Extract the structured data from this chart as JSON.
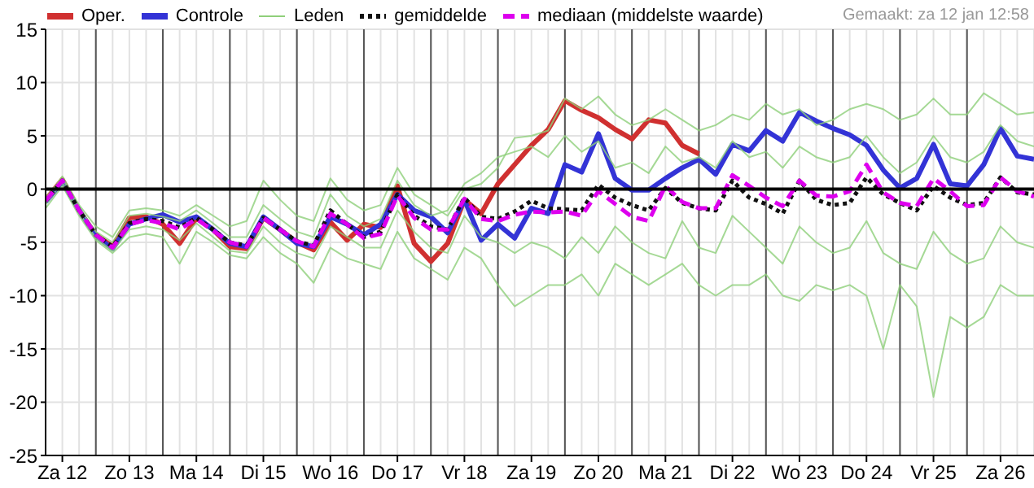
{
  "chart_data": {
    "type": "line",
    "annotations": [
      "Gemaakt: za 12 jan 12:58"
    ],
    "categories": [
      null,
      "Za 12",
      null,
      null,
      null,
      "Zo 13",
      null,
      null,
      null,
      "Ma 14",
      null,
      null,
      null,
      "Di 15",
      null,
      null,
      null,
      "Wo 16",
      null,
      null,
      null,
      "Do 17",
      null,
      null,
      null,
      "Vr 18",
      null,
      null,
      null,
      "Za 19",
      null,
      null,
      null,
      "Zo 20",
      null,
      null,
      null,
      "Ma 21",
      null,
      null,
      null,
      "Di 22",
      null,
      null,
      null,
      "Wo 23",
      null,
      null,
      null,
      "Do 24",
      null,
      null,
      null,
      "Vr 25",
      null,
      null,
      null,
      "Za 26",
      null,
      null
    ],
    "series": [
      {
        "name": "Oper.",
        "color": "#d03030",
        "values": [
          -1.0,
          0.9,
          -2.0,
          -4.3,
          -5.4,
          -2.7,
          -2.6,
          -3.3,
          -5.1,
          -2.7,
          -3.8,
          -5.4,
          -5.6,
          -2.7,
          -3.8,
          -5.0,
          -5.7,
          -3.1,
          -4.8,
          -3.3,
          -3.6,
          0.3,
          -5.1,
          -6.8,
          -5.1,
          -1.0,
          -2.3,
          0.5,
          2.3,
          4.1,
          5.6,
          8.3,
          7.4,
          6.7,
          5.6,
          4.7,
          6.5,
          6.2,
          4.1,
          3.3,
          null,
          null,
          null,
          null,
          null,
          null,
          null,
          null,
          null,
          null,
          null,
          null,
          null,
          null,
          null,
          null,
          null,
          null,
          null,
          null
        ]
      },
      {
        "name": "Controle",
        "color": "#3333d6",
        "values": [
          -1.2,
          0.7,
          -2,
          -4.4,
          -5.6,
          -3.3,
          -2.8,
          -2.4,
          -3.1,
          -2.6,
          -3.8,
          -5.1,
          -5.4,
          -2.6,
          -3.8,
          -5.1,
          -5.4,
          -2.6,
          -3.3,
          -4.3,
          -3.3,
          -0.5,
          -2.0,
          -2.6,
          -4.1,
          -1.0,
          -4.8,
          -3.3,
          -4.6,
          -1.8,
          -2.3,
          2.3,
          1.6,
          5.2,
          1.0,
          -0.1,
          -0.1,
          1.0,
          2.0,
          2.8,
          1.4,
          4.2,
          3.6,
          5.5,
          4.5,
          7.2,
          6.4,
          5.7,
          5.1,
          4.1,
          1.8,
          0.1,
          1.0,
          4.2,
          0.5,
          0.3,
          2.3,
          5.7,
          3.1,
          2.8
        ]
      },
      {
        "name": "Leden",
        "color": "#8fcf7a",
        "values": [
          -1,
          1.2,
          -1.5,
          -3.5,
          -4.5,
          -2,
          -1.8,
          -2,
          -2.5,
          -1.5,
          -2.5,
          -3.5,
          -3,
          0.8,
          -1,
          -2.5,
          -3,
          1,
          -1,
          -2,
          -1.5,
          2,
          -0.5,
          -1.5,
          -2.5,
          0,
          0.5,
          2,
          4.8,
          5,
          5.5,
          8.5,
          7.5,
          8.7,
          7,
          6,
          6.5,
          7.5,
          6.5,
          5.5,
          6,
          7,
          6.5,
          8,
          7,
          7.5,
          6,
          6.5,
          7.5,
          8,
          7.5,
          6.5,
          7,
          8.5,
          7,
          7,
          9,
          8,
          7,
          7.2
        ]
      },
      {
        "color": "#8fcf7a",
        "values": [
          -1.8,
          0.3,
          -2.5,
          -4.8,
          -6,
          -4.5,
          -4.2,
          -4.5,
          -7,
          -4,
          -5,
          -6.2,
          -6.5,
          -4.5,
          -6,
          -7,
          -8.8,
          -5.5,
          -6.5,
          -7,
          -7.5,
          -4,
          -6.5,
          -7.5,
          -8.5,
          -5.5,
          -6.5,
          -9,
          -11,
          -10,
          -9,
          -9,
          -8,
          -10,
          -7,
          -8,
          -9,
          -8,
          -7,
          -9,
          -10,
          -9,
          -9,
          -8,
          -10,
          -10.5,
          -9,
          -9.5,
          -9,
          -10,
          -15,
          -9,
          -11,
          -19.5,
          -12,
          -13,
          -12,
          -9,
          -10,
          -10
        ]
      },
      {
        "color": "#8fcf7a",
        "values": [
          -0.8,
          1.0,
          -1.8,
          -4.0,
          -5.0,
          -2.5,
          -2.3,
          -2.6,
          -3.0,
          -2.0,
          -3.2,
          -4.5,
          -4.5,
          -1.5,
          -2.8,
          -4.0,
          -4.5,
          -0.5,
          -2.5,
          -3.5,
          -2.8,
          0.8,
          -1.5,
          -2.5,
          -2.0,
          0.5,
          1.5,
          3.0,
          3.5,
          4.0,
          3.0,
          5.0,
          3.5,
          4.5,
          2.0,
          2.5,
          1.5,
          4.0,
          2.5,
          3.0,
          2.0,
          4.5,
          3.0,
          3.5,
          2.0,
          4.0,
          3.0,
          2.5,
          3.0,
          5.0,
          3.0,
          1.5,
          2.5,
          5.0,
          3.0,
          2.5,
          3.5,
          6.0,
          4.5,
          4.0
        ]
      },
      {
        "color": "#8fcf7a",
        "values": [
          -1.4,
          0.6,
          -2.2,
          -4.6,
          -5.8,
          -3.8,
          -3.5,
          -3.8,
          -4.8,
          -3.2,
          -4.5,
          -5.8,
          -6.0,
          -3.5,
          -5.0,
          -6.0,
          -6.5,
          -3.5,
          -4.5,
          -5.5,
          -5.5,
          -2.0,
          -4.0,
          -5.5,
          -6.0,
          -2.5,
          -4.5,
          -5.0,
          -6.0,
          -5.0,
          -5.5,
          -6.5,
          -4.5,
          -6.0,
          -3.5,
          -5.0,
          -6.0,
          -6.5,
          -3.0,
          -5.5,
          -6.0,
          -2.5,
          -4.0,
          -5.5,
          -7.0,
          -3.5,
          -5.0,
          -6.0,
          -5.5,
          -3.0,
          -6.0,
          -7.0,
          -7.5,
          -4.0,
          -6.0,
          -7.0,
          -6.5,
          -3.5,
          -5.0,
          -5.5
        ]
      },
      {
        "name": "gemiddelde",
        "color": "#111111",
        "line_style": "dotted",
        "values": [
          -1.1,
          0.8,
          -2,
          -4.3,
          -5.4,
          -3.2,
          -2.8,
          -3.0,
          -3.6,
          -2.7,
          -3.8,
          -5.0,
          -5.3,
          -2.7,
          -3.8,
          -4.9,
          -5.3,
          -2.0,
          -3.3,
          -4.5,
          -4.0,
          -0.5,
          -2.5,
          -3.5,
          -3.8,
          -0.8,
          -2.6,
          -2.8,
          -2.1,
          -1.1,
          -1.8,
          -1.9,
          -2.0,
          0.4,
          -0.8,
          -1.5,
          -2.0,
          0.1,
          -1.3,
          -1.8,
          -2.0,
          0.8,
          -0.8,
          -1.4,
          -2.3,
          0.8,
          -1.0,
          -1.5,
          -1.3,
          1.1,
          -0.5,
          -1.3,
          -2.0,
          0.3,
          -0.8,
          -1.5,
          -1.3,
          1.1,
          -0.3,
          -0.5
        ]
      },
      {
        "name": "mediaan (middelste waarde)",
        "color": "#dd00ee",
        "line_style": "dashed",
        "values": [
          -1.1,
          0.8,
          -2,
          -4.3,
          -5.5,
          -3.3,
          -2.9,
          -3.2,
          -3.8,
          -2.8,
          -3.9,
          -5.0,
          -5.4,
          -2.7,
          -3.8,
          -4.9,
          -5.4,
          -2.3,
          -3.3,
          -4.6,
          -4.2,
          -0.6,
          -2.7,
          -3.8,
          -3.8,
          -0.9,
          -2.8,
          -3.0,
          -2.4,
          -2.1,
          -2.2,
          -2.1,
          -2.5,
          -0.2,
          -1.4,
          -2.6,
          -3.0,
          0.3,
          -1.2,
          -1.8,
          -1.8,
          1.3,
          0.3,
          -0.8,
          -1.6,
          0.8,
          -0.6,
          -0.7,
          -0.2,
          2.3,
          -0.3,
          -1.3,
          -1.6,
          1.0,
          -0.2,
          -1.6,
          -1.5,
          1.1,
          -0.2,
          -0.7
        ]
      }
    ],
    "ylim": [
      -25,
      15
    ],
    "yticks": [
      15,
      10,
      5,
      0,
      -5,
      -10,
      -15,
      -20,
      -25
    ],
    "ref_lines": [
      {
        "axis": "y",
        "value": 0,
        "color": "#000000"
      }
    ],
    "grid": true,
    "legend": "top",
    "marker": "none",
    "line_style": "solid"
  }
}
